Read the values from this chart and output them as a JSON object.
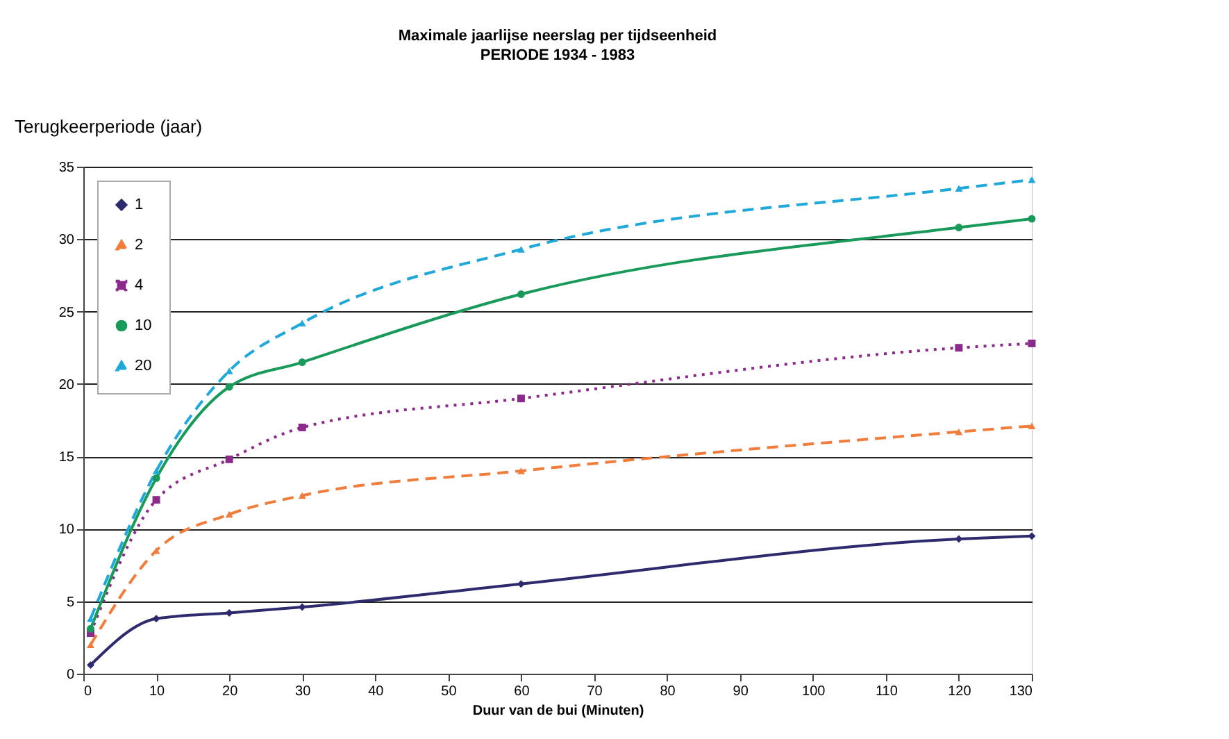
{
  "chart_data": {
    "type": "line",
    "title": "Maximale jaarlijse neerslag per tijdseenheid",
    "subtitle": "PERIODE 1934 - 1983",
    "xlabel": "Duur van de bui (Minuten)",
    "ylabel": "Terugkeerperiode (jaar)",
    "x": [
      1,
      10,
      20,
      30,
      60,
      120,
      130
    ],
    "series": [
      {
        "name": "1",
        "color": "#2e2a6e",
        "marker": "diamond",
        "line_style": "solid",
        "values": [
          0.6,
          3.8,
          4.2,
          4.6,
          6.2,
          9.3,
          9.5
        ]
      },
      {
        "name": "2",
        "color": "#f07d3c",
        "marker": "triangle",
        "line_style": "dashed",
        "values": [
          2.0,
          8.5,
          11.0,
          12.3,
          14.0,
          16.7,
          17.1
        ]
      },
      {
        "name": "4",
        "color": "#8b2a8b",
        "marker": "square",
        "line_style": "dotted",
        "values": [
          2.8,
          12.0,
          14.8,
          17.0,
          19.0,
          22.5,
          22.8
        ]
      },
      {
        "name": "10",
        "color": "#1a9a5a",
        "marker": "circle",
        "line_style": "solid",
        "values": [
          3.1,
          13.5,
          19.8,
          21.5,
          26.2,
          30.8,
          31.4
        ]
      },
      {
        "name": "20",
        "color": "#1fa8d8",
        "marker": "triangle",
        "line_style": "dashed",
        "values": [
          3.8,
          14.0,
          20.9,
          24.2,
          29.3,
          33.5,
          34.1
        ]
      }
    ],
    "xlim": [
      0,
      130
    ],
    "xticks": [
      0,
      10,
      20,
      30,
      40,
      50,
      60,
      70,
      80,
      90,
      100,
      110,
      120,
      130
    ],
    "ylim": [
      0,
      35
    ],
    "yticks": [
      0,
      5,
      10,
      15,
      20,
      25,
      30,
      35
    ],
    "grid": "y",
    "legend": "top left"
  }
}
